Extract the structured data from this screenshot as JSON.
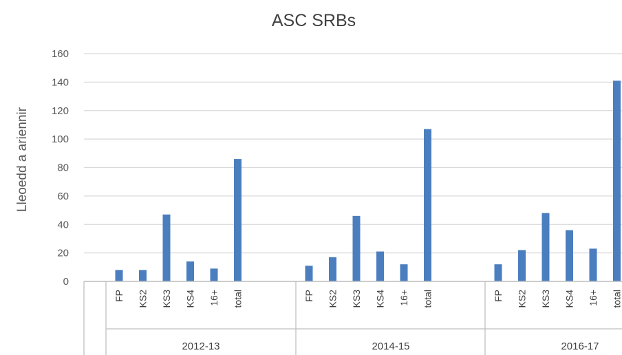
{
  "chart_data": {
    "type": "bar",
    "title": "ASC SRBs",
    "xlabel": "",
    "ylabel": "Lleoedd a ariennir",
    "ylim": [
      0,
      160
    ],
    "yticks": [
      "0",
      "20",
      "40",
      "60",
      "80",
      "100",
      "120",
      "140",
      "160"
    ],
    "grid": true,
    "legend": "none",
    "bar_color": "#4a7ebf",
    "groups": [
      {
        "label": "2012-13",
        "categories": [
          "FP",
          "KS2",
          "KS3",
          "KS4",
          "16+",
          "total"
        ],
        "values": [
          8,
          8,
          47,
          14,
          9,
          86
        ]
      },
      {
        "label": "2014-15",
        "categories": [
          "FP",
          "KS2",
          "KS3",
          "KS4",
          "16+",
          "total"
        ],
        "values": [
          11,
          17,
          46,
          21,
          12,
          107
        ]
      },
      {
        "label": "2016-17",
        "categories": [
          "FP",
          "KS2",
          "KS3",
          "KS4",
          "16+",
          "total"
        ],
        "values": [
          12,
          22,
          48,
          36,
          23,
          141
        ]
      }
    ]
  }
}
